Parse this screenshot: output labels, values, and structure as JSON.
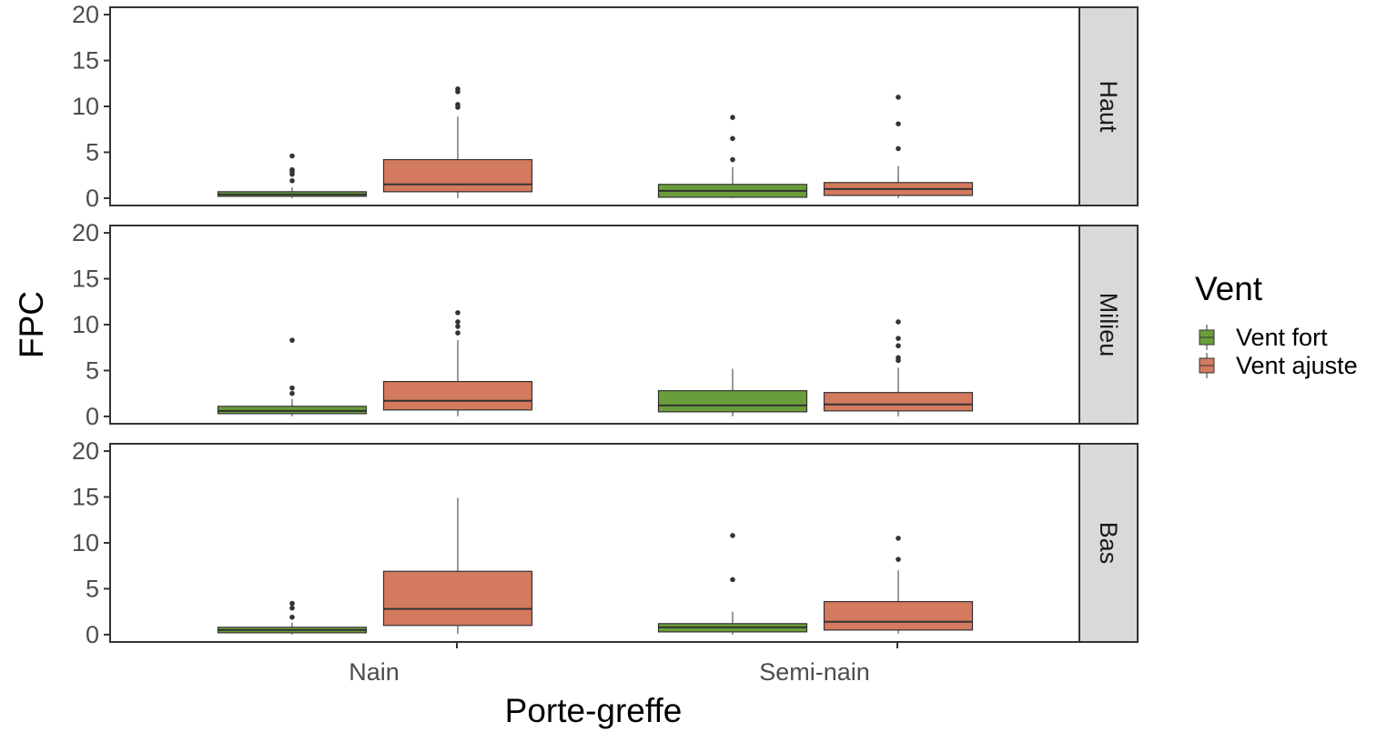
{
  "chart_data": {
    "type": "boxplot",
    "facet_by": "row",
    "xlabel": "Porte-greffe",
    "ylabel": "FPC",
    "ylim": [
      -0.8,
      20.8
    ],
    "yticks": [
      0,
      5,
      10,
      15,
      20
    ],
    "grid": false,
    "categories": [
      "Nain",
      "Semi-nain"
    ],
    "legend": {
      "title": "Vent",
      "position": "right",
      "entries": [
        {
          "name": "Vent fort",
          "color": "#6a9e3a"
        },
        {
          "name": "Vent ajuste",
          "color": "#d47a5e"
        }
      ]
    },
    "panels": [
      {
        "strip": "Haut",
        "boxes": [
          {
            "category": "Nain",
            "series": "Vent fort",
            "whisker_low": 0,
            "q1": 0.2,
            "median": 0.4,
            "q3": 0.7,
            "whisker_high": 1.2,
            "outliers": [
              1.9,
              2.6,
              2.9,
              3.1,
              4.6
            ]
          },
          {
            "category": "Nain",
            "series": "Vent ajuste",
            "whisker_low": 0,
            "q1": 0.7,
            "median": 1.5,
            "q3": 4.2,
            "whisker_high": 8.9,
            "outliers": [
              9.9,
              10.2,
              11.6,
              11.9
            ]
          },
          {
            "category": "Semi-nain",
            "series": "Vent fort",
            "whisker_low": 0,
            "q1": 0.1,
            "median": 0.8,
            "q3": 1.5,
            "whisker_high": 3.4,
            "outliers": [
              4.2,
              6.5,
              8.8
            ]
          },
          {
            "category": "Semi-nain",
            "series": "Vent ajuste",
            "whisker_low": 0,
            "q1": 0.3,
            "median": 1.0,
            "q3": 1.7,
            "whisker_high": 3.5,
            "outliers": [
              5.4,
              8.1,
              11.0
            ]
          }
        ]
      },
      {
        "strip": "Milieu",
        "boxes": [
          {
            "category": "Nain",
            "series": "Vent fort",
            "whisker_low": 0,
            "q1": 0.3,
            "median": 0.6,
            "q3": 1.1,
            "whisker_high": 1.9,
            "outliers": [
              2.5,
              3.1,
              8.3
            ]
          },
          {
            "category": "Nain",
            "series": "Vent ajuste",
            "whisker_low": 0,
            "q1": 0.7,
            "median": 1.7,
            "q3": 3.8,
            "whisker_high": 8.3,
            "outliers": [
              9.1,
              9.8,
              10.3,
              11.3
            ]
          },
          {
            "category": "Semi-nain",
            "series": "Vent fort",
            "whisker_low": 0,
            "q1": 0.5,
            "median": 1.2,
            "q3": 2.8,
            "whisker_high": 5.2,
            "outliers": []
          },
          {
            "category": "Semi-nain",
            "series": "Vent ajuste",
            "whisker_low": 0,
            "q1": 0.6,
            "median": 1.3,
            "q3": 2.6,
            "whisker_high": 5.3,
            "outliers": [
              6.1,
              6.4,
              7.7,
              8.5,
              10.3
            ]
          }
        ]
      },
      {
        "strip": "Bas",
        "boxes": [
          {
            "category": "Nain",
            "series": "Vent fort",
            "whisker_low": 0,
            "q1": 0.2,
            "median": 0.5,
            "q3": 0.8,
            "whisker_high": 1.3,
            "outliers": [
              1.9,
              2.9,
              3.4
            ]
          },
          {
            "category": "Nain",
            "series": "Vent ajuste",
            "whisker_low": 0.1,
            "q1": 1.0,
            "median": 2.8,
            "q3": 6.9,
            "whisker_high": 14.9,
            "outliers": []
          },
          {
            "category": "Semi-nain",
            "series": "Vent fort",
            "whisker_low": 0,
            "q1": 0.3,
            "median": 0.8,
            "q3": 1.2,
            "whisker_high": 2.5,
            "outliers": [
              6.0,
              10.8
            ]
          },
          {
            "category": "Semi-nain",
            "series": "Vent ajuste",
            "whisker_low": 0.1,
            "q1": 0.5,
            "median": 1.4,
            "q3": 3.6,
            "whisker_high": 7.0,
            "outliers": [
              8.2,
              10.5
            ]
          }
        ]
      }
    ]
  }
}
